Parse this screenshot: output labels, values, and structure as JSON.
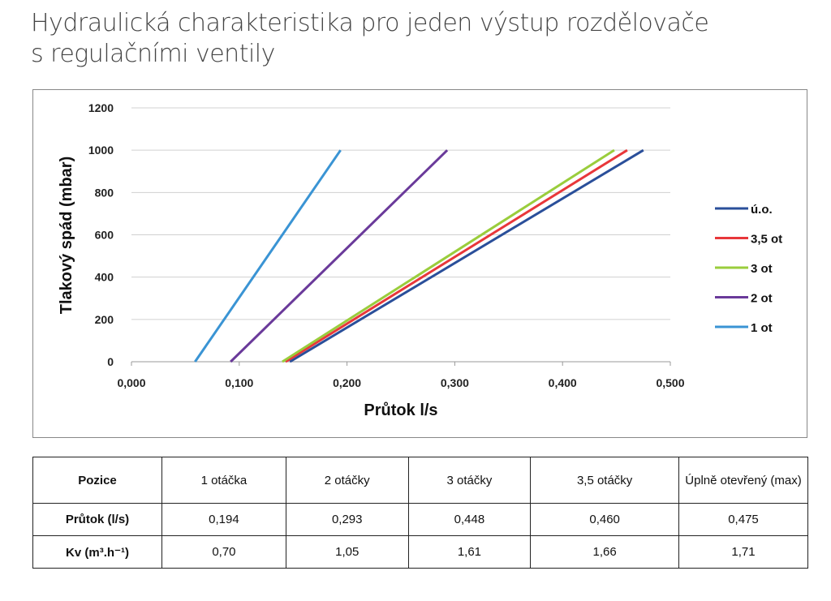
{
  "title_lines": [
    "Hydraulická charakteristika pro jeden výstup rozdělovače",
    "s regulačními ventily"
  ],
  "chart_data": {
    "type": "line",
    "xlabel": "Průtok l/s",
    "ylabel": "Tlakový spád (mbar)",
    "xlim": [
      0,
      0.5
    ],
    "ylim": [
      0,
      1200
    ],
    "xticks": [
      "0,000",
      "0,100",
      "0,200",
      "0,300",
      "0,400",
      "0,500"
    ],
    "yticks": [
      "0",
      "200",
      "400",
      "600",
      "800",
      "1000",
      "1200"
    ],
    "grid": "horizontal",
    "legend": "right",
    "series": [
      {
        "name": "ú.o.",
        "color": "#2a4f9a",
        "x": [
          0.147,
          0.475
        ],
        "y": [
          0,
          1000
        ]
      },
      {
        "name": "3,5 ot",
        "color": "#e8373a",
        "x": [
          0.143,
          0.46
        ],
        "y": [
          0,
          1000
        ]
      },
      {
        "name": "3 ot",
        "color": "#9acd3c",
        "x": [
          0.14,
          0.448
        ],
        "y": [
          0,
          1000
        ]
      },
      {
        "name": "2 ot",
        "color": "#6a3a9a",
        "x": [
          0.092,
          0.293
        ],
        "y": [
          0,
          1000
        ]
      },
      {
        "name": "1 ot",
        "color": "#3a94d4",
        "x": [
          0.059,
          0.194
        ],
        "y": [
          0,
          1000
        ]
      }
    ]
  },
  "table": {
    "header": [
      "Pozice",
      "1 otáčka",
      "2 otáčky",
      "3 otáčky",
      "3,5 otáčky",
      "Úplně otevřený (max)"
    ],
    "rows": [
      [
        "Průtok (l/s)",
        "0,194",
        "0,293",
        "0,448",
        "0,460",
        "0,475"
      ],
      [
        "Kv (m³.h⁻¹)",
        "0,70",
        "1,05",
        "1,61",
        "1,66",
        "1,71"
      ]
    ]
  }
}
